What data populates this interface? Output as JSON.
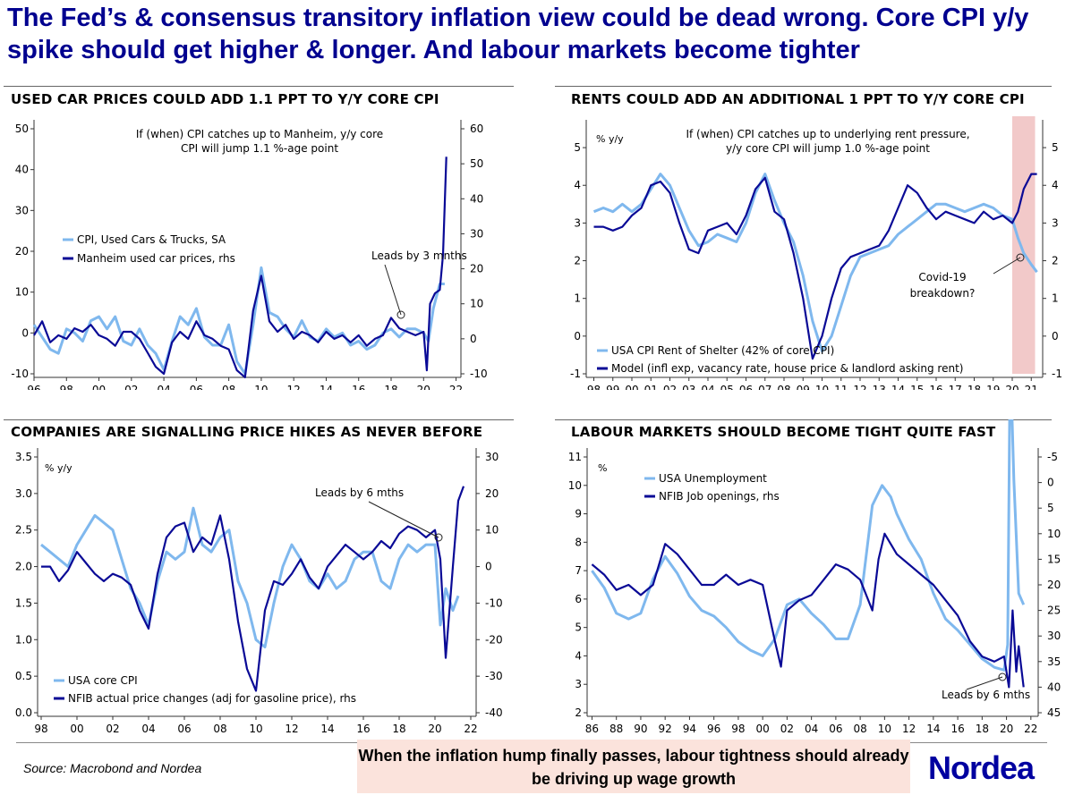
{
  "headline": "The Fed’s & consensus transitory inflation view could be dead wrong. Core CPI y/y spike should get higher & longer. And labour markets become tighter",
  "source": "Source: Macrobond and Nordea",
  "callout": "When the inflation hump finally passes, labour tightness should already be driving up wage growth",
  "logo": "Nordea",
  "colors": {
    "light": "#7fb8ee",
    "dark": "#0a0a96",
    "headline": "#00008f",
    "shade": "#f2c9c9"
  },
  "chart_data": [
    {
      "type": "line",
      "title": "USED CAR PRICES COULD ADD 1.1 PPT TO Y/Y CORE CPI",
      "annotation": "If (when) CPI catches up to Manheim, y/y core CPI will jump 1.1 %-age point",
      "annotation2": "Leads by 3 mnths",
      "ylabel_left": "",
      "ylabel_right": "",
      "x_ticks": [
        "96",
        "98",
        "00",
        "02",
        "04",
        "06",
        "08",
        "10",
        "12",
        "14",
        "16",
        "18",
        "20",
        "22"
      ],
      "xlim": [
        1996,
        2022.3
      ],
      "ylim_left": [
        -10,
        50
      ],
      "yticks_left": [
        -10,
        0,
        10,
        20,
        30,
        40,
        50
      ],
      "ylim_right": [
        -10,
        60
      ],
      "yticks_right": [
        -10,
        0,
        10,
        20,
        30,
        40,
        50,
        60
      ],
      "series": [
        {
          "name": "CPI, Used Cars & Trucks, SA",
          "axis": "left",
          "color": "light",
          "x": [
            1996,
            1996.5,
            1997,
            1997.5,
            1998,
            1998.5,
            1999,
            1999.5,
            2000,
            2000.5,
            2001,
            2001.5,
            2002,
            2002.5,
            2003,
            2003.5,
            2004,
            2004.5,
            2005,
            2005.5,
            2006,
            2006.5,
            2007,
            2007.5,
            2008,
            2008.5,
            2009,
            2009.5,
            2010,
            2010.5,
            2011,
            2011.5,
            2012,
            2012.5,
            2013,
            2013.5,
            2014,
            2014.5,
            2015,
            2015.5,
            2016,
            2016.5,
            2017,
            2017.5,
            2018,
            2018.5,
            2019,
            2019.5,
            2020,
            2020.3,
            2020.6,
            2021,
            2021.3
          ],
          "y": [
            2,
            -1,
            -4,
            -5,
            1,
            0,
            -2,
            3,
            4,
            1,
            4,
            -2,
            -3,
            1,
            -3,
            -5,
            -9,
            -2,
            4,
            2,
            6,
            -1,
            -3,
            -3,
            2,
            -7,
            -10,
            2,
            16,
            5,
            4,
            1,
            -1,
            3,
            -1,
            -2,
            1,
            -1,
            0,
            -3,
            -2,
            -4,
            -3,
            0,
            1,
            -1,
            1,
            1,
            0,
            -2,
            6,
            12,
            12
          ]
        },
        {
          "name": "Manheim used car prices, rhs",
          "axis": "right",
          "color": "dark",
          "x": [
            1996,
            1996.5,
            1997,
            1997.5,
            1998,
            1998.5,
            1999,
            1999.5,
            2000,
            2000.5,
            2001,
            2001.5,
            2002,
            2002.5,
            2003,
            2003.5,
            2004,
            2004.5,
            2005,
            2005.5,
            2006,
            2006.5,
            2007,
            2007.5,
            2008,
            2008.5,
            2009,
            2009.5,
            2010,
            2010.5,
            2011,
            2011.5,
            2012,
            2012.5,
            2013,
            2013.5,
            2014,
            2014.5,
            2015,
            2015.5,
            2016,
            2016.5,
            2017,
            2017.5,
            2018,
            2018.5,
            2019,
            2019.5,
            2020,
            2020.2,
            2020.4,
            2020.7,
            2021,
            2021.2,
            2021.4
          ],
          "y": [
            1,
            5,
            -1,
            1,
            0,
            3,
            2,
            4,
            1,
            0,
            -2,
            2,
            2,
            0,
            -4,
            -8,
            -10,
            -1,
            2,
            0,
            5,
            1,
            0,
            -2,
            -3,
            -9,
            -11,
            8,
            18,
            5,
            2,
            4,
            0,
            2,
            1,
            -1,
            2,
            0,
            1,
            -1,
            1,
            -2,
            0,
            1,
            6,
            3,
            2,
            1,
            2,
            -9,
            10,
            13,
            14,
            24,
            52
          ]
        }
      ]
    },
    {
      "type": "line",
      "title": "RENTS COULD ADD AN ADDITIONAL 1 PPT TO Y/Y CORE CPI",
      "annotation": "If (when) CPI catches up to underlying rent pressure, y/y core CPI will jump 1.0 %-age point",
      "annotation2": "Covid-19 breakdown?",
      "ylabel_left": "% y/y",
      "x_ticks": [
        "98",
        "99",
        "00",
        "01",
        "02",
        "03",
        "04",
        "05",
        "06",
        "07",
        "08",
        "09",
        "10",
        "11",
        "12",
        "13",
        "14",
        "15",
        "16",
        "17",
        "18",
        "19",
        "20",
        "21"
      ],
      "xlim": [
        1997.6,
        2021.6
      ],
      "shade": [
        2020.0,
        2021.2
      ],
      "ylim_left": [
        -1,
        5.5
      ],
      "yticks_left": [
        -1,
        0,
        1,
        2,
        3,
        4,
        5
      ],
      "ylim_right": [
        -1,
        5.5
      ],
      "yticks_right": [
        -1,
        0,
        1,
        2,
        3,
        4,
        5
      ],
      "series": [
        {
          "name": "USA CPI Rent of Shelter (42% of core CPI)",
          "axis": "left",
          "color": "light",
          "x": [
            1998,
            1998.5,
            1999,
            1999.5,
            2000,
            2000.5,
            2001,
            2001.5,
            2002,
            2002.5,
            2003,
            2003.5,
            2004,
            2004.5,
            2005,
            2005.5,
            2006,
            2006.5,
            2007,
            2007.5,
            2008,
            2008.5,
            2009,
            2009.5,
            2010,
            2010.5,
            2011,
            2011.5,
            2012,
            2012.5,
            2013,
            2013.5,
            2014,
            2014.5,
            2015,
            2015.5,
            2016,
            2016.5,
            2017,
            2017.5,
            2018,
            2018.5,
            2019,
            2019.5,
            2020,
            2020.3,
            2020.6,
            2021,
            2021.3
          ],
          "y": [
            3.3,
            3.4,
            3.3,
            3.5,
            3.3,
            3.5,
            3.9,
            4.3,
            4.0,
            3.4,
            2.8,
            2.4,
            2.5,
            2.7,
            2.6,
            2.5,
            3.0,
            3.8,
            4.3,
            3.6,
            3.0,
            2.5,
            1.6,
            0.4,
            -0.4,
            0.0,
            0.8,
            1.6,
            2.1,
            2.2,
            2.3,
            2.4,
            2.7,
            2.9,
            3.1,
            3.3,
            3.5,
            3.5,
            3.4,
            3.3,
            3.4,
            3.5,
            3.4,
            3.2,
            3.1,
            2.6,
            2.2,
            1.9,
            1.7
          ]
        },
        {
          "name": "Model (infl exp, vacancy rate, house price & landlord asking rent)",
          "axis": "left",
          "color": "dark",
          "x": [
            1998,
            1998.5,
            1999,
            1999.5,
            2000,
            2000.5,
            2001,
            2001.5,
            2002,
            2002.5,
            2003,
            2003.5,
            2004,
            2004.5,
            2005,
            2005.5,
            2006,
            2006.5,
            2007,
            2007.5,
            2008,
            2008.5,
            2009,
            2009.5,
            2010,
            2010.5,
            2011,
            2011.5,
            2012,
            2012.5,
            2013,
            2013.5,
            2014,
            2014.5,
            2015,
            2015.5,
            2016,
            2016.5,
            2017,
            2017.5,
            2018,
            2018.5,
            2019,
            2019.5,
            2020,
            2020.3,
            2020.6,
            2021,
            2021.3
          ],
          "y": [
            2.9,
            2.9,
            2.8,
            2.9,
            3.2,
            3.4,
            4.0,
            4.1,
            3.8,
            3.0,
            2.3,
            2.2,
            2.8,
            2.9,
            3.0,
            2.7,
            3.2,
            3.9,
            4.2,
            3.3,
            3.1,
            2.2,
            1.0,
            -0.6,
            0.0,
            1.0,
            1.8,
            2.1,
            2.2,
            2.3,
            2.4,
            2.8,
            3.4,
            4.0,
            3.8,
            3.4,
            3.1,
            3.3,
            3.2,
            3.1,
            3.0,
            3.3,
            3.1,
            3.2,
            3.0,
            3.3,
            3.9,
            4.3,
            4.3
          ]
        }
      ]
    },
    {
      "type": "line",
      "title": "COMPANIES ARE SIGNALLING PRICE HIKES AS NEVER BEFORE",
      "annotation2": "Leads by 6 mths",
      "ylabel_left": "% y/y",
      "x_ticks": [
        "98",
        "00",
        "02",
        "04",
        "06",
        "08",
        "10",
        "12",
        "14",
        "16",
        "18",
        "20",
        "22"
      ],
      "xlim": [
        1997.8,
        2022.3
      ],
      "ylim_left": [
        0,
        3.5
      ],
      "yticks_left": [
        0.0,
        0.5,
        1.0,
        1.5,
        2.0,
        2.5,
        3.0,
        3.5
      ],
      "ylim_right": [
        -40,
        30
      ],
      "yticks_right": [
        -40,
        -30,
        -20,
        -10,
        0,
        10,
        20,
        30
      ],
      "series": [
        {
          "name": "USA core CPI",
          "axis": "left",
          "color": "light",
          "x": [
            1998,
            1998.5,
            1999,
            1999.5,
            2000,
            2000.5,
            2001,
            2001.5,
            2002,
            2002.5,
            2003,
            2003.5,
            2004,
            2004.5,
            2005,
            2005.5,
            2006,
            2006.5,
            2007,
            2007.5,
            2008,
            2008.5,
            2009,
            2009.5,
            2010,
            2010.5,
            2011,
            2011.5,
            2012,
            2012.5,
            2013,
            2013.5,
            2014,
            2014.5,
            2015,
            2015.5,
            2016,
            2016.5,
            2017,
            2017.5,
            2018,
            2018.5,
            2019,
            2019.5,
            2020,
            2020.3,
            2020.6,
            2021,
            2021.3
          ],
          "y": [
            2.3,
            2.2,
            2.1,
            2.0,
            2.3,
            2.5,
            2.7,
            2.6,
            2.5,
            2.1,
            1.7,
            1.5,
            1.2,
            1.8,
            2.2,
            2.1,
            2.2,
            2.8,
            2.3,
            2.2,
            2.4,
            2.5,
            1.8,
            1.5,
            1.0,
            0.9,
            1.5,
            2.0,
            2.3,
            2.1,
            1.8,
            1.7,
            1.9,
            1.7,
            1.8,
            2.1,
            2.2,
            2.2,
            1.8,
            1.7,
            2.1,
            2.3,
            2.2,
            2.3,
            2.3,
            1.2,
            1.7,
            1.4,
            1.6
          ]
        },
        {
          "name": "NFIB actual price changes (adj for gasoline price), rhs",
          "axis": "right",
          "color": "dark",
          "x": [
            1998,
            1998.5,
            1999,
            1999.5,
            2000,
            2000.5,
            2001,
            2001.5,
            2002,
            2002.5,
            2003,
            2003.5,
            2004,
            2004.5,
            2005,
            2005.5,
            2006,
            2006.5,
            2007,
            2007.5,
            2008,
            2008.5,
            2009,
            2009.5,
            2010,
            2010.5,
            2011,
            2011.5,
            2012,
            2012.5,
            2013,
            2013.5,
            2014,
            2014.5,
            2015,
            2015.5,
            2016,
            2016.5,
            2017,
            2017.5,
            2018,
            2018.5,
            2019,
            2019.5,
            2020,
            2020.3,
            2020.6,
            2021,
            2021.3,
            2021.6
          ],
          "y": [
            0,
            0,
            -4,
            -1,
            4,
            1,
            -2,
            -4,
            -2,
            -3,
            -5,
            -12,
            -17,
            -2,
            8,
            11,
            12,
            4,
            8,
            6,
            14,
            2,
            -15,
            -28,
            -34,
            -12,
            -4,
            -5,
            -2,
            2,
            -3,
            -6,
            0,
            3,
            6,
            4,
            2,
            4,
            7,
            5,
            9,
            11,
            10,
            8,
            10,
            2,
            -25,
            0,
            18,
            22
          ]
        }
      ]
    },
    {
      "type": "line",
      "title": "LABOUR MARKETS SHOULD BECOME TIGHT QUITE FAST",
      "annotation2": "Leads by 6 mths",
      "ylabel_left": "%",
      "x_ticks": [
        "86",
        "88",
        "90",
        "92",
        "94",
        "96",
        "98",
        "00",
        "02",
        "04",
        "06",
        "08",
        "10",
        "12",
        "14",
        "16",
        "18",
        "20",
        "22"
      ],
      "xlim": [
        1985.6,
        2022.6
      ],
      "ylim_left": [
        2,
        11
      ],
      "yticks_left": [
        2,
        3,
        4,
        5,
        6,
        7,
        8,
        9,
        10,
        11
      ],
      "ylim_right": [
        45,
        -5
      ],
      "yticks_right": [
        -5,
        0,
        5,
        10,
        15,
        20,
        25,
        30,
        35,
        40,
        45
      ],
      "series": [
        {
          "name": "USA Unemployment",
          "axis": "left",
          "color": "light",
          "x": [
            1986,
            1987,
            1988,
            1989,
            1990,
            1991,
            1992,
            1993,
            1994,
            1995,
            1996,
            1997,
            1998,
            1999,
            2000,
            2001,
            2002,
            2003,
            2004,
            2005,
            2006,
            2007,
            2008,
            2009,
            2009.8,
            2010.5,
            2011,
            2012,
            2013,
            2014,
            2015,
            2016,
            2017,
            2018,
            2019,
            2019.8,
            2020.1,
            2020.3,
            2020.6,
            2021,
            2021.4
          ],
          "y": [
            7.0,
            6.4,
            5.5,
            5.3,
            5.5,
            6.7,
            7.5,
            6.9,
            6.1,
            5.6,
            5.4,
            5.0,
            4.5,
            4.2,
            4.0,
            4.6,
            5.8,
            6.0,
            5.5,
            5.1,
            4.6,
            4.6,
            5.8,
            9.3,
            10.0,
            9.6,
            9.0,
            8.1,
            7.4,
            6.2,
            5.3,
            4.9,
            4.4,
            3.9,
            3.6,
            3.5,
            4.4,
            14.7,
            10.2,
            6.2,
            5.8
          ]
        },
        {
          "name": "NFIB Job openings, rhs",
          "axis": "right",
          "color": "dark",
          "x": [
            1986,
            1987,
            1988,
            1989,
            1990,
            1991,
            1992,
            1993,
            1994,
            1995,
            1996,
            1997,
            1998,
            1999,
            2000,
            2001,
            2001.5,
            2002,
            2003,
            2004,
            2005,
            2006,
            2007,
            2008,
            2009,
            2009.5,
            2010,
            2011,
            2012,
            2013,
            2014,
            2015,
            2016,
            2017,
            2018,
            2019,
            2019.8,
            2020.2,
            2020.5,
            2020.8,
            2021,
            2021.4
          ],
          "y": [
            16,
            18,
            21,
            20,
            22,
            20,
            12,
            14,
            17,
            20,
            20,
            18,
            20,
            19,
            20,
            31,
            36,
            25,
            23,
            22,
            19,
            16,
            17,
            19,
            25,
            15,
            10,
            14,
            16,
            18,
            20,
            23,
            26,
            31,
            34,
            35,
            34,
            40,
            25,
            37,
            32,
            40
          ]
        }
      ]
    }
  ]
}
